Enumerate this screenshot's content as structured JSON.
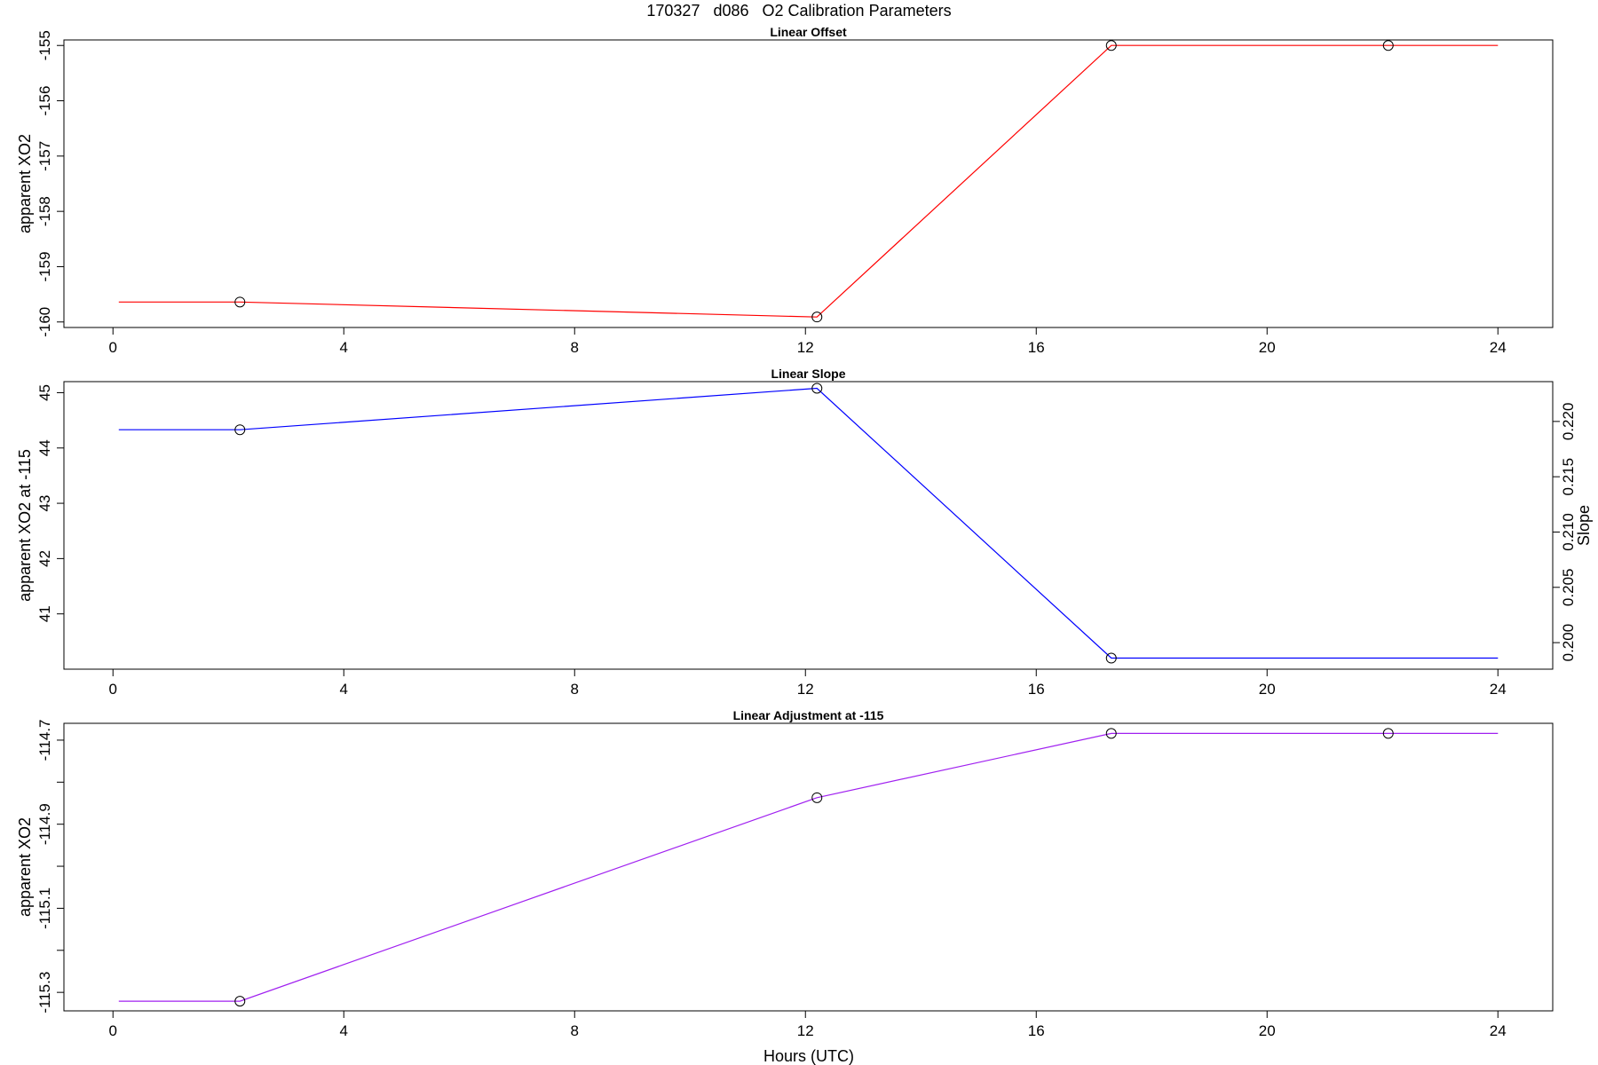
{
  "figure": {
    "title": "170327   d086   O2 Calibration Parameters",
    "xlabel": "Hours (UTC)"
  },
  "chart_data": [
    {
      "type": "line",
      "title": "Linear Offset",
      "ylabel": "apparent XO2",
      "xlim": [
        -0.85,
        24.95
      ],
      "ylim": [
        -160.1,
        -154.9
      ],
      "xticks": [
        0,
        4,
        8,
        12,
        16,
        20,
        24
      ],
      "yticks": [
        -160,
        -159,
        -158,
        -157,
        -156,
        -155
      ],
      "ytick_labels": [
        "-160",
        "-159",
        "-158",
        "-157",
        "-156",
        "-155"
      ],
      "color": "#ff0000",
      "line": {
        "x": [
          0.1,
          2.2,
          12.2,
          17.3,
          22.1,
          24.0
        ],
        "y": [
          -159.64,
          -159.64,
          -159.91,
          -155.0,
          -155.0,
          -155.0
        ]
      },
      "points": {
        "x": [
          2.2,
          12.2,
          17.3,
          22.1
        ],
        "y": [
          -159.64,
          -159.91,
          -155.0,
          -155.0
        ]
      }
    },
    {
      "type": "line",
      "title": "Linear Slope",
      "ylabel": "apparent XO2 at -115",
      "ylabel_right": "Slope",
      "xlim": [
        -0.85,
        24.95
      ],
      "ylim": [
        40.0,
        45.2
      ],
      "ylim_right": [
        0.1976,
        0.2236
      ],
      "xticks": [
        0,
        4,
        8,
        12,
        16,
        20,
        24
      ],
      "yticks": [
        41,
        42,
        43,
        44,
        45
      ],
      "ytick_labels": [
        "41",
        "42",
        "43",
        "44",
        "45"
      ],
      "yticks_right": [
        0.2,
        0.205,
        0.21,
        0.215,
        0.22
      ],
      "ytick_labels_right": [
        "0.200",
        "0.205",
        "0.210",
        "0.215",
        "0.220"
      ],
      "color": "#0000ff",
      "line": {
        "x": [
          0.1,
          2.2,
          12.2,
          17.3,
          24.0
        ],
        "y": [
          44.33,
          44.33,
          45.08,
          40.2,
          40.2
        ]
      },
      "points": {
        "x": [
          2.2,
          12.2,
          17.3
        ],
        "y": [
          44.33,
          45.08,
          40.2
        ]
      }
    },
    {
      "type": "line",
      "title": "Linear Adjustment at -115",
      "ylabel": "apparent XO2",
      "xlim": [
        -0.85,
        24.95
      ],
      "ylim": [
        -115.344,
        -114.66
      ],
      "xticks": [
        0,
        4,
        8,
        12,
        16,
        20,
        24
      ],
      "yticks": [
        -115.3,
        -115.2,
        -115.1,
        -115.0,
        -114.9,
        -114.8,
        -114.7
      ],
      "ytick_labels": [
        "-115.3",
        "",
        "-115.1",
        "",
        "-114.9",
        "",
        "-114.7"
      ],
      "color": "#a020f0",
      "line": {
        "x": [
          0.1,
          2.2,
          12.2,
          17.3,
          22.1,
          24.0
        ],
        "y": [
          -115.321,
          -115.321,
          -114.837,
          -114.684,
          -114.684,
          -114.684
        ]
      },
      "points": {
        "x": [
          2.2,
          12.2,
          17.3,
          22.1
        ],
        "y": [
          -115.321,
          -114.837,
          -114.684,
          -114.684
        ]
      }
    }
  ]
}
